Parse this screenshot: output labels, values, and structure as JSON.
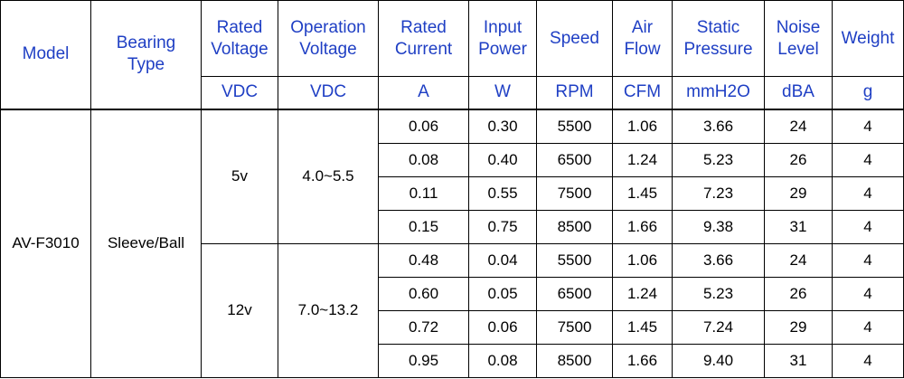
{
  "columns": [
    {
      "label": "Model"
    },
    {
      "label": "Bearing Type"
    },
    {
      "label": "Rated Voltage",
      "unit": "VDC"
    },
    {
      "label": "Operation Voltage",
      "unit": "VDC"
    },
    {
      "label": "Rated Current",
      "unit": "A"
    },
    {
      "label": "Input Power",
      "unit": "W"
    },
    {
      "label": "Speed",
      "unit": "RPM"
    },
    {
      "label": "Air Flow",
      "unit": "CFM"
    },
    {
      "label": "Static Pressure",
      "unit": "mmH2O"
    },
    {
      "label": "Noise Level",
      "unit": "dBA"
    },
    {
      "label": "Weight",
      "unit": "g"
    }
  ],
  "model": "AV-F3010",
  "bearing": "Sleeve/Ball",
  "groups": [
    {
      "rated_voltage": "5v",
      "operation_voltage": "4.0~5.5",
      "rows": [
        [
          "0.06",
          "0.30",
          "5500",
          "1.06",
          "3.66",
          "24",
          "4"
        ],
        [
          "0.08",
          "0.40",
          "6500",
          "1.24",
          "5.23",
          "26",
          "4"
        ],
        [
          "0.11",
          "0.55",
          "7500",
          "1.45",
          "7.23",
          "29",
          "4"
        ],
        [
          "0.15",
          "0.75",
          "8500",
          "1.66",
          "9.38",
          "31",
          "4"
        ]
      ]
    },
    {
      "rated_voltage": "12v",
      "operation_voltage": "7.0~13.2",
      "rows": [
        [
          "0.48",
          "0.04",
          "5500",
          "1.06",
          "3.66",
          "24",
          "4"
        ],
        [
          "0.60",
          "0.05",
          "6500",
          "1.24",
          "5.23",
          "26",
          "4"
        ],
        [
          "0.72",
          "0.06",
          "7500",
          "1.45",
          "7.24",
          "29",
          "4"
        ],
        [
          "0.95",
          "0.08",
          "8500",
          "1.66",
          "9.40",
          "31",
          "4"
        ]
      ]
    }
  ]
}
